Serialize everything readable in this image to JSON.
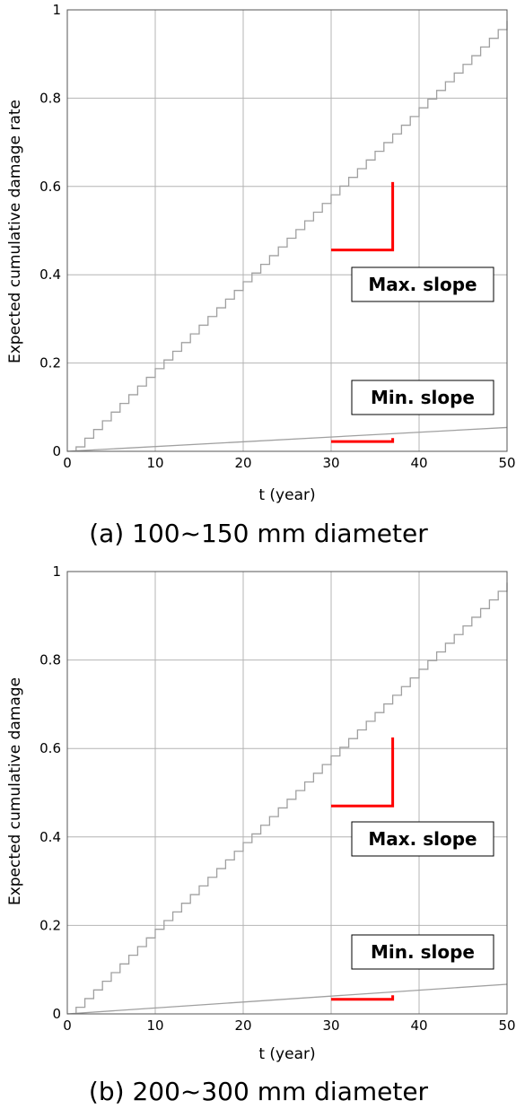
{
  "chart_data": [
    {
      "type": "line",
      "caption": "(a) 100~150 mm diameter",
      "xlabel": "t (year)",
      "ylabel": "Expected cumulative damage rate",
      "xlim": [
        0,
        50
      ],
      "ylim": [
        0,
        1
      ],
      "xticks": [
        "0",
        "10",
        "20",
        "30",
        "40",
        "50"
      ],
      "yticks": [
        "0",
        "0.2",
        "0.4",
        "0.6",
        "0.8",
        "1"
      ],
      "grid": true,
      "series": [
        {
          "kind": "step",
          "color": "#a0a0a0",
          "start_year": 1,
          "end_year": 50,
          "step_years": 1,
          "y_start": 0.01,
          "y_end": 0.975
        },
        {
          "kind": "line",
          "color": "#a0a0a0",
          "x": [
            0,
            50
          ],
          "y": [
            0,
            0.054
          ]
        }
      ],
      "annotations": [
        {
          "label": "Max. slope",
          "color": "#ff0000",
          "x": [
            30,
            37
          ],
          "y_base": 0.456,
          "y_top": 0.61
        },
        {
          "label": "Min. slope",
          "color": "#ff0000",
          "x": [
            30,
            37
          ],
          "y_base": 0.022,
          "y_top": 0.03
        }
      ]
    },
    {
      "type": "line",
      "caption": "(b) 200~300 mm diameter",
      "xlabel": "t (year)",
      "ylabel": "Expected cumulative damage",
      "xlim": [
        0,
        50
      ],
      "ylim": [
        0,
        1
      ],
      "xticks": [
        "0",
        "10",
        "20",
        "30",
        "40",
        "50"
      ],
      "yticks": [
        "0",
        "0.2",
        "0.4",
        "0.6",
        "0.8",
        "1"
      ],
      "grid": true,
      "series": [
        {
          "kind": "step",
          "color": "#a0a0a0",
          "start_year": 1,
          "end_year": 50,
          "step_years": 1,
          "y_start": 0.015,
          "y_end": 0.975
        },
        {
          "kind": "line",
          "color": "#a0a0a0",
          "x": [
            0,
            50
          ],
          "y": [
            0,
            0.067
          ]
        }
      ],
      "annotations": [
        {
          "label": "Max. slope",
          "color": "#ff0000",
          "x": [
            30,
            37
          ],
          "y_base": 0.47,
          "y_top": 0.625
        },
        {
          "label": "Min. slope",
          "color": "#ff0000",
          "x": [
            30,
            37
          ],
          "y_base": 0.033,
          "y_top": 0.042
        }
      ]
    }
  ]
}
